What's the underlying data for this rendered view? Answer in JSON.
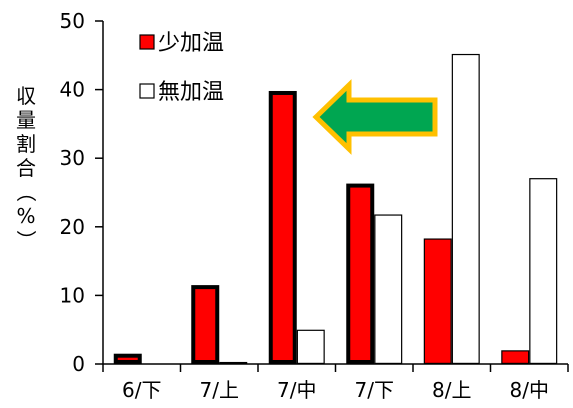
{
  "chart_data": {
    "type": "bar",
    "categories": [
      "6/下",
      "7/上",
      "7/中",
      "7/下",
      "8/上",
      "8/中"
    ],
    "series": [
      {
        "name": "少加温",
        "values": [
          1.5,
          11.5,
          39.8,
          26.3,
          18.3,
          2.0
        ],
        "color": "#ff0000",
        "bold_outline": [
          true,
          true,
          true,
          true,
          false,
          false
        ]
      },
      {
        "name": "無加温",
        "values": [
          0.0,
          0.3,
          5.0,
          21.8,
          45.2,
          27.1
        ],
        "color": "#ffffff"
      }
    ],
    "ylabel": "収量割合（%）",
    "yticks": [
      0,
      10,
      20,
      30,
      40,
      50
    ],
    "ylim": [
      0,
      50
    ],
    "legend_position": "top-center",
    "annotation": {
      "shape": "arrow",
      "direction": "left",
      "fill": "#00a651",
      "outline": "#ffc000"
    }
  }
}
